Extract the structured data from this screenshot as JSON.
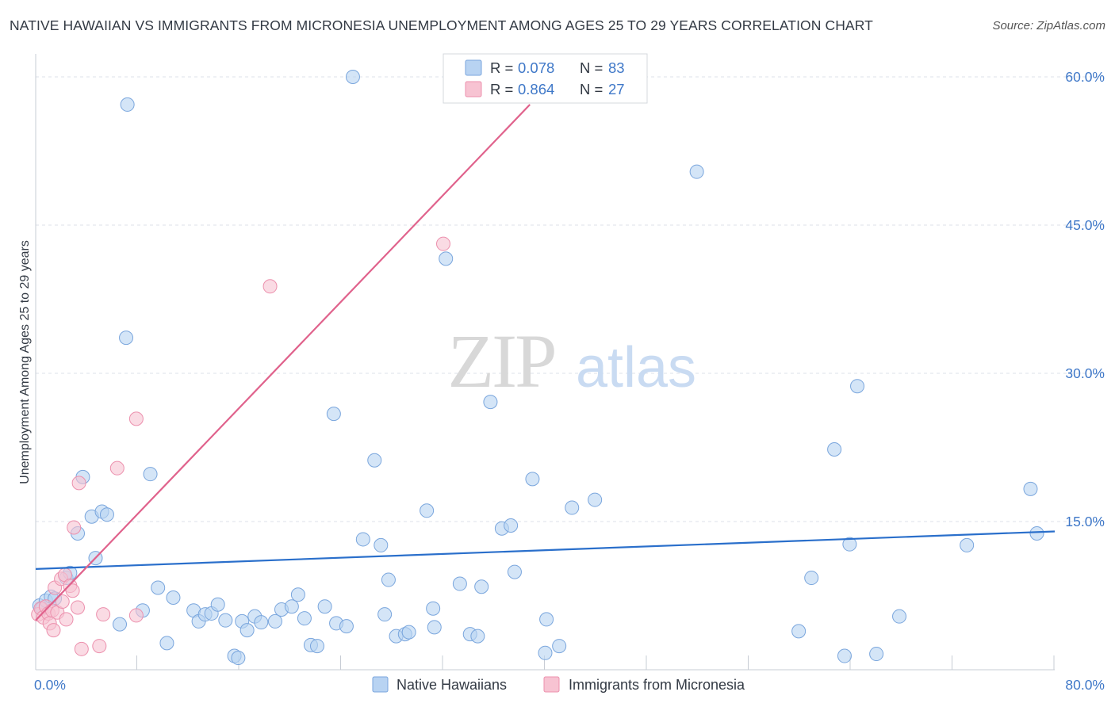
{
  "title": "NATIVE HAWAIIAN VS IMMIGRANTS FROM MICRONESIA UNEMPLOYMENT AMONG AGES 25 TO 29 YEARS CORRELATION CHART",
  "source": "Source: ZipAtlas.com",
  "watermark": {
    "zip": "ZIP",
    "atlas": "atlas"
  },
  "legend": {
    "items": [
      {
        "r_label": "R = ",
        "r_value": "0.078",
        "n_label": "N = ",
        "n_value": "83"
      },
      {
        "r_label": "R = ",
        "r_value": "0.864",
        "n_label": "N = ",
        "n_value": "27"
      }
    ]
  },
  "colors": {
    "blue_fill": "#b8d3f2",
    "blue_stroke": "#7aa6dd",
    "blue_line": "#2a6fcb",
    "pink_fill": "#f7c3d2",
    "pink_stroke": "#ec90ad",
    "pink_line": "#e0628c",
    "value_text": "#3f78c8",
    "grid": "#dde1e8"
  },
  "chart_data": {
    "type": "scatter",
    "xlabel": "",
    "ylabel": "Unemployment Among Ages 25 to 29 years",
    "xlim": [
      0,
      80
    ],
    "ylim": [
      0,
      60
    ],
    "x_tick_labels": [
      {
        "value": 0,
        "label": "0.0%"
      },
      {
        "value": 80,
        "label": "80.0%"
      }
    ],
    "y_tick_labels": [
      {
        "value": 15,
        "label": "15.0%"
      },
      {
        "value": 30,
        "label": "30.0%"
      },
      {
        "value": 45,
        "label": "45.0%"
      },
      {
        "value": 60,
        "label": "60.0%"
      }
    ],
    "x_minor_ticks": [
      8,
      16,
      24,
      32,
      40,
      48,
      56,
      64,
      72,
      80
    ],
    "series": [
      {
        "name": "Native Hawaiians",
        "color": "#b8d3f2",
        "r": 0.078,
        "n": 83,
        "trend": {
          "x": [
            0,
            80
          ],
          "y": [
            10.2,
            14.0
          ]
        },
        "points": [
          [
            0.3,
            6.5
          ],
          [
            0.5,
            6.2
          ],
          [
            0.8,
            7.0
          ],
          [
            1.2,
            7.4
          ],
          [
            1.5,
            7.2
          ],
          [
            2.4,
            9.3
          ],
          [
            2.7,
            9.8
          ],
          [
            3.3,
            13.8
          ],
          [
            3.7,
            19.5
          ],
          [
            4.4,
            15.5
          ],
          [
            5.2,
            16.0
          ],
          [
            5.6,
            15.7
          ],
          [
            4.7,
            11.3
          ],
          [
            6.6,
            4.6
          ],
          [
            7.1,
            33.6
          ],
          [
            7.2,
            57.2
          ],
          [
            8.4,
            6.0
          ],
          [
            9.0,
            19.8
          ],
          [
            9.6,
            8.3
          ],
          [
            10.3,
            2.7
          ],
          [
            10.8,
            7.3
          ],
          [
            12.4,
            6.0
          ],
          [
            12.8,
            4.9
          ],
          [
            13.3,
            5.6
          ],
          [
            13.8,
            5.7
          ],
          [
            14.3,
            6.6
          ],
          [
            14.9,
            5.0
          ],
          [
            15.6,
            1.4
          ],
          [
            15.9,
            1.2
          ],
          [
            16.2,
            4.9
          ],
          [
            16.6,
            4.0
          ],
          [
            17.2,
            5.4
          ],
          [
            17.7,
            4.8
          ],
          [
            18.8,
            4.9
          ],
          [
            19.3,
            6.1
          ],
          [
            20.1,
            6.4
          ],
          [
            20.6,
            7.6
          ],
          [
            21.1,
            5.2
          ],
          [
            21.6,
            2.5
          ],
          [
            22.1,
            2.4
          ],
          [
            22.7,
            6.4
          ],
          [
            23.4,
            25.9
          ],
          [
            23.6,
            4.7
          ],
          [
            24.4,
            4.4
          ],
          [
            24.9,
            60.0
          ],
          [
            25.7,
            13.2
          ],
          [
            26.6,
            21.2
          ],
          [
            27.1,
            12.6
          ],
          [
            27.4,
            5.6
          ],
          [
            27.7,
            9.1
          ],
          [
            28.3,
            3.4
          ],
          [
            29.0,
            3.6
          ],
          [
            29.3,
            3.8
          ],
          [
            30.7,
            16.1
          ],
          [
            31.2,
            6.2
          ],
          [
            31.3,
            4.3
          ],
          [
            32.2,
            41.6
          ],
          [
            33.3,
            8.7
          ],
          [
            34.1,
            3.6
          ],
          [
            34.7,
            3.4
          ],
          [
            35.0,
            8.4
          ],
          [
            35.7,
            27.1
          ],
          [
            36.6,
            14.3
          ],
          [
            37.3,
            14.6
          ],
          [
            37.6,
            9.9
          ],
          [
            39.0,
            19.3
          ],
          [
            40.1,
            5.1
          ],
          [
            40.0,
            1.7
          ],
          [
            41.1,
            2.4
          ],
          [
            42.1,
            16.4
          ],
          [
            43.9,
            17.2
          ],
          [
            51.9,
            50.4
          ],
          [
            59.9,
            3.9
          ],
          [
            60.9,
            9.3
          ],
          [
            62.7,
            22.3
          ],
          [
            63.5,
            1.4
          ],
          [
            63.9,
            12.7
          ],
          [
            64.5,
            28.7
          ],
          [
            66.0,
            1.6
          ],
          [
            67.8,
            5.4
          ],
          [
            73.1,
            12.6
          ],
          [
            78.1,
            18.3
          ],
          [
            78.6,
            13.8
          ]
        ]
      },
      {
        "name": "Immigrants from Micronesia",
        "color": "#f7c3d2",
        "r": 0.864,
        "n": 27,
        "trend": {
          "x": [
            0,
            38.8
          ],
          "y": [
            5.0,
            57.2
          ]
        },
        "points": [
          [
            0.2,
            5.6
          ],
          [
            0.4,
            6.2
          ],
          [
            0.6,
            5.3
          ],
          [
            0.8,
            6.4
          ],
          [
            1.0,
            5.7
          ],
          [
            1.1,
            4.7
          ],
          [
            1.3,
            6.0
          ],
          [
            1.4,
            4.0
          ],
          [
            1.5,
            8.3
          ],
          [
            1.7,
            5.8
          ],
          [
            2.0,
            9.2
          ],
          [
            2.1,
            6.9
          ],
          [
            2.3,
            9.6
          ],
          [
            2.4,
            5.1
          ],
          [
            2.7,
            8.5
          ],
          [
            2.9,
            8.0
          ],
          [
            3.0,
            14.4
          ],
          [
            3.3,
            6.3
          ],
          [
            3.4,
            18.9
          ],
          [
            3.6,
            2.1
          ],
          [
            5.0,
            2.4
          ],
          [
            5.3,
            5.6
          ],
          [
            6.4,
            20.4
          ],
          [
            7.9,
            5.5
          ],
          [
            7.9,
            25.4
          ],
          [
            18.4,
            38.8
          ],
          [
            32.0,
            43.1
          ]
        ]
      }
    ],
    "legend_bottom": [
      "Native Hawaiians",
      "Immigrants from Micronesia"
    ]
  }
}
